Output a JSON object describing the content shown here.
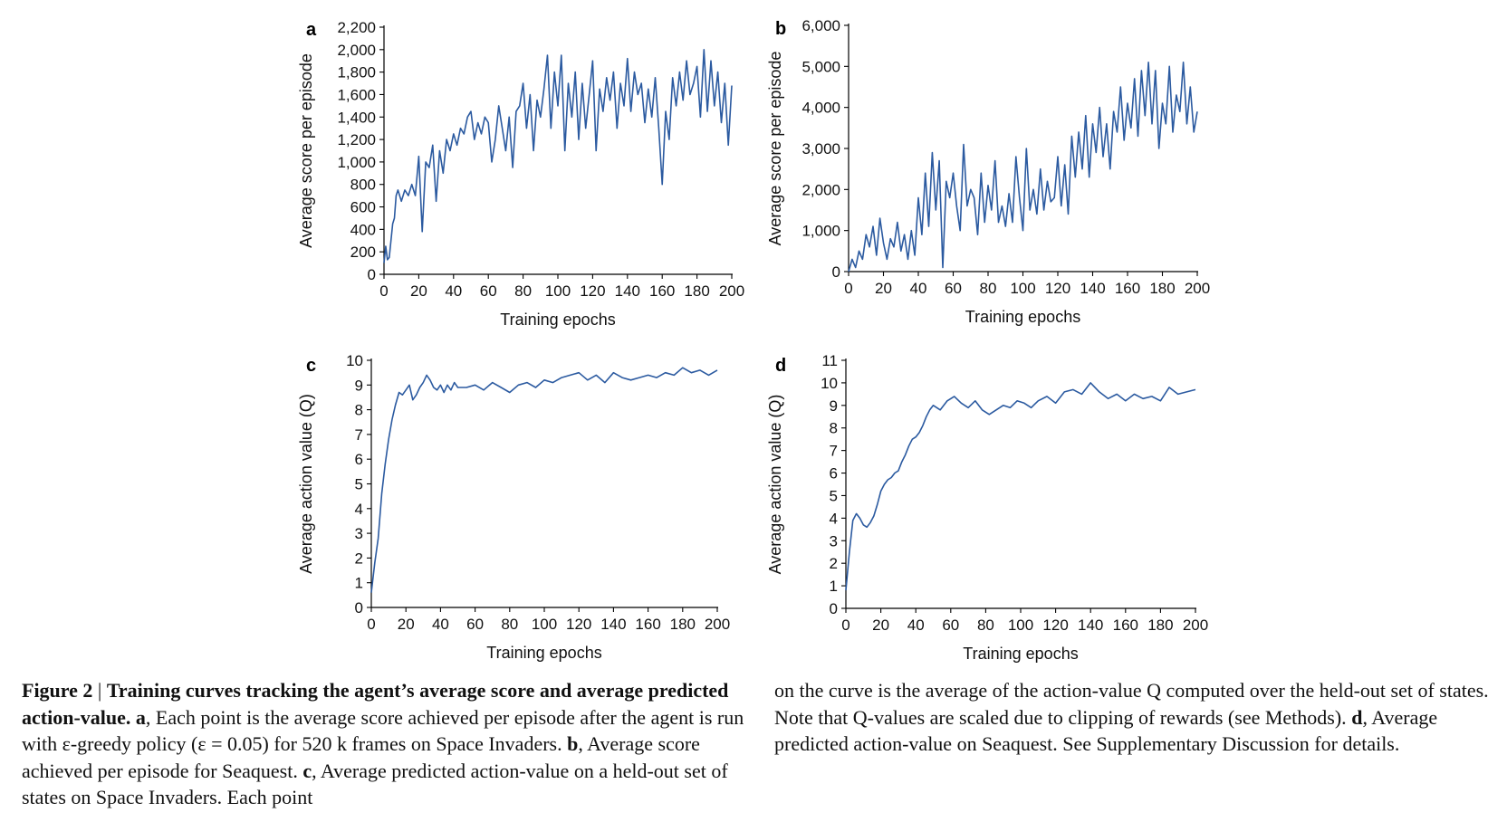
{
  "chart_data": [
    {
      "panel": "a",
      "type": "line",
      "xlabel": "Training epochs",
      "ylabel": "Average score per episode",
      "xlim": [
        0,
        200
      ],
      "ylim": [
        0,
        2200
      ],
      "xticks": [
        0,
        20,
        40,
        60,
        80,
        100,
        120,
        140,
        160,
        180,
        200
      ],
      "yticks": [
        0,
        200,
        400,
        600,
        800,
        1000,
        1200,
        1400,
        1600,
        1800,
        2000,
        2200
      ],
      "ytick_labels": [
        "0",
        "200",
        "400",
        "600",
        "800",
        "1,000",
        "1,200",
        "1,400",
        "1,600",
        "1,800",
        "2,000",
        "2,200"
      ],
      "color": "#2b5aa0",
      "series": [
        {
          "x": [
            0,
            1,
            2,
            3,
            4,
            5,
            6,
            7,
            8,
            9,
            10,
            12,
            14,
            16,
            18,
            20,
            22,
            24,
            26,
            28,
            30,
            32,
            34,
            36,
            38,
            40,
            42,
            44,
            46,
            48,
            50,
            52,
            54,
            56,
            58,
            60,
            62,
            64,
            66,
            68,
            70,
            72,
            74,
            76,
            78,
            80,
            82,
            84,
            86,
            88,
            90,
            92,
            94,
            96,
            98,
            100,
            102,
            104,
            106,
            108,
            110,
            112,
            114,
            116,
            118,
            120,
            122,
            124,
            126,
            128,
            130,
            132,
            134,
            136,
            138,
            140,
            142,
            144,
            146,
            148,
            150,
            152,
            154,
            156,
            158,
            160,
            162,
            164,
            166,
            168,
            170,
            172,
            174,
            176,
            178,
            180,
            182,
            184,
            186,
            188,
            190,
            192,
            194,
            196,
            198,
            200
          ],
          "y": [
            100,
            250,
            130,
            150,
            300,
            450,
            500,
            700,
            750,
            700,
            650,
            750,
            700,
            800,
            700,
            1050,
            380,
            1000,
            950,
            1150,
            650,
            1100,
            900,
            1200,
            1100,
            1250,
            1150,
            1300,
            1250,
            1400,
            1450,
            1200,
            1350,
            1250,
            1400,
            1350,
            1000,
            1200,
            1500,
            1300,
            1100,
            1400,
            950,
            1450,
            1500,
            1700,
            1300,
            1600,
            1100,
            1550,
            1400,
            1650,
            1950,
            1300,
            1800,
            1500,
            1950,
            1100,
            1700,
            1400,
            1800,
            1200,
            1700,
            1300,
            1600,
            1900,
            1100,
            1650,
            1450,
            1750,
            1550,
            1800,
            1300,
            1700,
            1500,
            1920,
            1450,
            1800,
            1600,
            1700,
            1350,
            1650,
            1400,
            1750,
            1300,
            800,
            1450,
            1200,
            1750,
            1500,
            1800,
            1550,
            1900,
            1600,
            1700,
            1850,
            1400,
            2000,
            1450,
            1900,
            1500,
            1800,
            1350,
            1700,
            1150,
            1680
          ]
        }
      ]
    },
    {
      "panel": "b",
      "type": "line",
      "xlabel": "Training epochs",
      "ylabel": "Average score per episode",
      "xlim": [
        0,
        200
      ],
      "ylim": [
        0,
        6000
      ],
      "xticks": [
        0,
        20,
        40,
        60,
        80,
        100,
        120,
        140,
        160,
        180,
        200
      ],
      "yticks": [
        0,
        1000,
        2000,
        3000,
        4000,
        5000,
        6000
      ],
      "ytick_labels": [
        "0",
        "1,000",
        "2,000",
        "3,000",
        "4,000",
        "5,000",
        "6,000"
      ],
      "color": "#2b5aa0",
      "series": [
        {
          "x": [
            0,
            2,
            4,
            6,
            8,
            10,
            12,
            14,
            16,
            18,
            20,
            22,
            24,
            26,
            28,
            30,
            32,
            34,
            36,
            38,
            40,
            42,
            44,
            46,
            48,
            50,
            52,
            54,
            56,
            58,
            60,
            62,
            64,
            66,
            68,
            70,
            72,
            74,
            76,
            78,
            80,
            82,
            84,
            86,
            88,
            90,
            92,
            94,
            96,
            98,
            100,
            102,
            104,
            106,
            108,
            110,
            112,
            114,
            116,
            118,
            120,
            122,
            124,
            126,
            128,
            130,
            132,
            134,
            136,
            138,
            140,
            142,
            144,
            146,
            148,
            150,
            152,
            154,
            156,
            158,
            160,
            162,
            164,
            166,
            168,
            170,
            172,
            174,
            176,
            178,
            180,
            182,
            184,
            186,
            188,
            190,
            192,
            194,
            196,
            198,
            200
          ],
          "y": [
            0,
            300,
            100,
            500,
            300,
            900,
            600,
            1100,
            400,
            1300,
            700,
            300,
            800,
            600,
            1200,
            500,
            900,
            300,
            1000,
            400,
            1800,
            900,
            2400,
            1100,
            2900,
            1500,
            2700,
            100,
            2200,
            1800,
            2400,
            1600,
            1000,
            3100,
            1600,
            2000,
            1800,
            900,
            2400,
            1200,
            2100,
            1500,
            2700,
            1200,
            1600,
            1100,
            1900,
            1200,
            2800,
            1800,
            1000,
            3000,
            1500,
            2000,
            1400,
            2500,
            1500,
            2200,
            1700,
            1800,
            2800,
            1600,
            2600,
            1400,
            3300,
            2300,
            3400,
            2500,
            3800,
            2300,
            3600,
            2900,
            4000,
            2800,
            3600,
            2500,
            3900,
            3400,
            4500,
            3200,
            4100,
            3500,
            4700,
            3300,
            4900,
            3800,
            5100,
            3600,
            4900,
            3000,
            4100,
            3600,
            5000,
            3400,
            4300,
            3900,
            5100,
            3600,
            4500,
            3400,
            3900
          ]
        }
      ]
    },
    {
      "panel": "c",
      "type": "line",
      "xlabel": "Training epochs",
      "ylabel": "Average action value (Q)",
      "xlim": [
        0,
        200
      ],
      "ylim": [
        0,
        10
      ],
      "xticks": [
        0,
        20,
        40,
        60,
        80,
        100,
        120,
        140,
        160,
        180,
        200
      ],
      "yticks": [
        0,
        1,
        2,
        3,
        4,
        5,
        6,
        7,
        8,
        9,
        10
      ],
      "ytick_labels": [
        "0",
        "1",
        "2",
        "3",
        "4",
        "5",
        "6",
        "7",
        "8",
        "9",
        "10"
      ],
      "color": "#2b5aa0",
      "series": [
        {
          "x": [
            0,
            2,
            4,
            6,
            8,
            10,
            12,
            14,
            16,
            18,
            20,
            22,
            24,
            26,
            28,
            30,
            32,
            34,
            36,
            38,
            40,
            42,
            44,
            46,
            48,
            50,
            55,
            60,
            65,
            70,
            75,
            80,
            85,
            90,
            95,
            100,
            105,
            110,
            115,
            120,
            125,
            130,
            135,
            140,
            145,
            150,
            155,
            160,
            165,
            170,
            175,
            180,
            185,
            190,
            195,
            200
          ],
          "y": [
            0.6,
            1.8,
            2.8,
            4.6,
            5.8,
            6.8,
            7.6,
            8.2,
            8.7,
            8.6,
            8.8,
            9.0,
            8.4,
            8.6,
            8.9,
            9.1,
            9.4,
            9.2,
            8.9,
            8.8,
            9.0,
            8.7,
            9.0,
            8.8,
            9.1,
            8.9,
            8.9,
            9.0,
            8.8,
            9.1,
            8.9,
            8.7,
            9.0,
            9.1,
            8.9,
            9.2,
            9.1,
            9.3,
            9.4,
            9.5,
            9.2,
            9.4,
            9.1,
            9.5,
            9.3,
            9.2,
            9.3,
            9.4,
            9.3,
            9.5,
            9.4,
            9.7,
            9.5,
            9.6,
            9.4,
            9.6
          ]
        }
      ]
    },
    {
      "panel": "d",
      "type": "line",
      "xlabel": "Training epochs",
      "ylabel": "Average action value (Q)",
      "xlim": [
        0,
        200
      ],
      "ylim": [
        0,
        11
      ],
      "xticks": [
        0,
        20,
        40,
        60,
        80,
        100,
        120,
        140,
        160,
        180,
        200
      ],
      "yticks": [
        0,
        1,
        2,
        3,
        4,
        5,
        6,
        7,
        8,
        9,
        10,
        11
      ],
      "ytick_labels": [
        "0",
        "1",
        "2",
        "3",
        "4",
        "5",
        "6",
        "7",
        "8",
        "9",
        "10",
        "11"
      ],
      "color": "#2b5aa0",
      "series": [
        {
          "x": [
            0,
            2,
            4,
            6,
            8,
            10,
            12,
            14,
            16,
            18,
            20,
            22,
            24,
            26,
            28,
            30,
            32,
            34,
            36,
            38,
            40,
            42,
            44,
            46,
            48,
            50,
            54,
            58,
            62,
            66,
            70,
            74,
            78,
            82,
            86,
            90,
            94,
            98,
            102,
            106,
            110,
            115,
            120,
            125,
            130,
            135,
            140,
            145,
            150,
            155,
            160,
            165,
            170,
            175,
            180,
            185,
            190,
            195,
            200
          ],
          "y": [
            0.8,
            2.5,
            3.9,
            4.2,
            4.0,
            3.7,
            3.6,
            3.8,
            4.1,
            4.6,
            5.2,
            5.5,
            5.7,
            5.8,
            6.0,
            6.1,
            6.5,
            6.8,
            7.2,
            7.5,
            7.6,
            7.8,
            8.1,
            8.5,
            8.8,
            9.0,
            8.8,
            9.2,
            9.4,
            9.1,
            8.9,
            9.2,
            8.8,
            8.6,
            8.8,
            9.0,
            8.9,
            9.2,
            9.1,
            8.9,
            9.2,
            9.4,
            9.1,
            9.6,
            9.7,
            9.5,
            10.0,
            9.6,
            9.3,
            9.5,
            9.2,
            9.5,
            9.3,
            9.4,
            9.2,
            9.8,
            9.5,
            9.6,
            9.7
          ]
        }
      ]
    }
  ],
  "caption": {
    "fig_label": "Figure 2",
    "separator": " | ",
    "title": "Training curves tracking the agent’s average score and average predicted action-value.",
    "part_a_label": "a",
    "part_a_text": ", Each point is the average score achieved per episode after the agent is run with ε-greedy policy (ε = 0.05) for 520 k frames on Space Invaders.",
    "part_b_label": "b",
    "part_b_text": ", Average score achieved per episode for Seaquest.",
    "part_c_label": "c",
    "part_c_text_left": ", Average predicted action-value on a held-out set of states on Space Invaders. Each point",
    "part_c_text_right": "on the curve is the average of the action-value Q computed over the held-out set of states. Note that Q-values are scaled due to clipping of rewards (see Methods).",
    "part_d_label": "d",
    "part_d_text": ", Average predicted action-value on Seaquest. See Supplementary Discussion for details."
  }
}
